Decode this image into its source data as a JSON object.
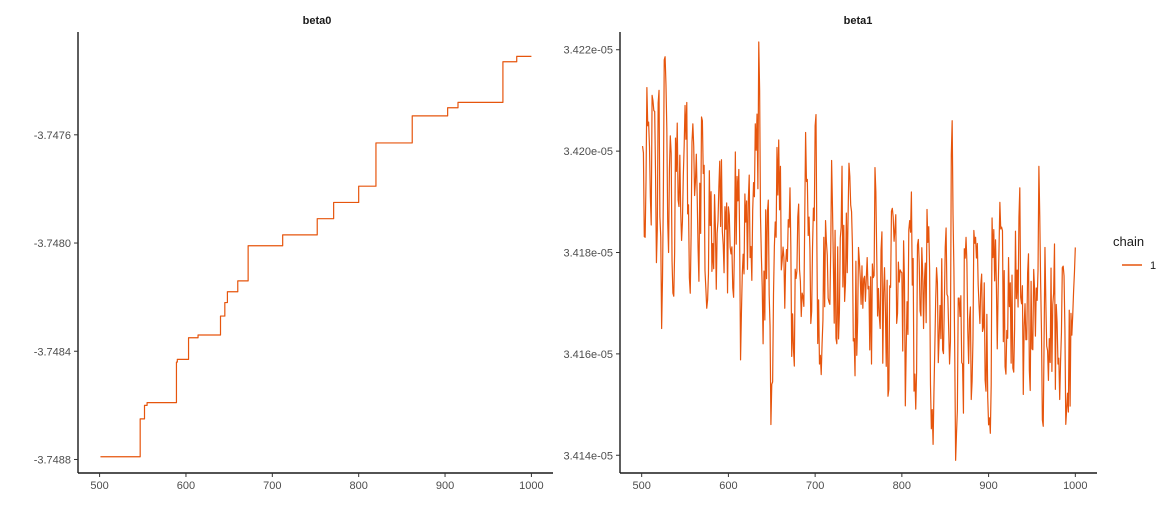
{
  "chart_data": [
    {
      "type": "line",
      "title": "beta0",
      "xlabel": "",
      "ylabel": "",
      "xlim": [
        475,
        1025
      ],
      "ylim": [
        -3.74885,
        -3.74722
      ],
      "x_ticks": [
        500,
        600,
        700,
        800,
        900,
        1000
      ],
      "x_tick_labels": [
        "500",
        "600",
        "700",
        "800",
        "900",
        "1000"
      ],
      "y_ticks": [
        -3.7476,
        -3.748,
        -3.7484,
        -3.7488
      ],
      "y_tick_labels": [
        "-3.7476",
        "-3.7480",
        "-3.7484",
        "-3.7488"
      ],
      "step": true,
      "series": [
        {
          "chain": "1",
          "x": [
            501,
            505,
            510,
            520,
            530,
            540,
            546,
            547,
            552,
            555,
            558,
            560,
            565,
            570,
            575,
            580,
            584,
            587,
            589,
            590,
            591,
            592,
            593,
            597,
            601,
            603,
            605,
            608,
            611,
            614,
            618,
            623,
            628,
            633,
            637,
            640,
            644,
            645,
            648,
            653,
            654,
            659,
            660,
            664,
            670,
            672,
            680,
            690,
            700,
            710,
            712,
            720,
            730,
            740,
            750,
            752,
            760,
            768,
            771,
            780,
            790,
            800,
            808,
            811,
            813,
            818,
            820,
            825,
            835,
            845,
            850,
            855,
            860,
            862,
            870,
            880,
            885,
            887,
            895,
            900,
            903,
            905,
            910,
            915,
            925,
            935,
            945,
            955,
            963,
            966,
            967,
            972,
            974,
            980,
            983,
            990,
            1000
          ],
          "y": [
            -3.74879,
            -3.74879,
            -3.74879,
            -3.74879,
            -3.74879,
            -3.74879,
            -3.74879,
            -3.74865,
            -3.7486,
            -3.74859,
            -3.74859,
            -3.74859,
            -3.74859,
            -3.74859,
            -3.74859,
            -3.74859,
            -3.74859,
            -3.74859,
            -3.74844,
            -3.74843,
            -3.74843,
            -3.74843,
            -3.74843,
            -3.74843,
            -3.74843,
            -3.74835,
            -3.74835,
            -3.74835,
            -3.74835,
            -3.74834,
            -3.74834,
            -3.74834,
            -3.74834,
            -3.74834,
            -3.74834,
            -3.74827,
            -3.74827,
            -3.74822,
            -3.74818,
            -3.74818,
            -3.74818,
            -3.74818,
            -3.74814,
            -3.74814,
            -3.74814,
            -3.74801,
            -3.74801,
            -3.74801,
            -3.74801,
            -3.74801,
            -3.74797,
            -3.74797,
            -3.74797,
            -3.74797,
            -3.74797,
            -3.74791,
            -3.74791,
            -3.74791,
            -3.74785,
            -3.74785,
            -3.74785,
            -3.74779,
            -3.74779,
            -3.74779,
            -3.74779,
            -3.74779,
            -3.74763,
            -3.74763,
            -3.74763,
            -3.74763,
            -3.74763,
            -3.74763,
            -3.74763,
            -3.74753,
            -3.74753,
            -3.74753,
            -3.74753,
            -3.74753,
            -3.74753,
            -3.74753,
            -3.7475,
            -3.7475,
            -3.7475,
            -3.74748,
            -3.74748,
            -3.74748,
            -3.74748,
            -3.74748,
            -3.74748,
            -3.74748,
            -3.74733,
            -3.74733,
            -3.74733,
            -3.74733,
            -3.74731,
            -3.74731,
            -3.74731
          ]
        }
      ]
    },
    {
      "type": "line",
      "title": "beta1",
      "xlabel": "",
      "ylabel": "",
      "xlim": [
        475,
        1025
      ],
      "ylim": [
        3.41365e-05,
        3.42235e-05
      ],
      "x_ticks": [
        500,
        600,
        700,
        800,
        900,
        1000
      ],
      "x_tick_labels": [
        "500",
        "600",
        "700",
        "800",
        "900",
        "1000"
      ],
      "y_ticks": [
        3.422e-05,
        3.42e-05,
        3.418e-05,
        3.416e-05,
        3.414e-05
      ],
      "y_tick_labels": [
        "3.422e-05",
        "3.420e-05",
        "3.418e-05",
        "3.416e-05",
        "3.414e-05"
      ],
      "step": false,
      "noise_amplitude": 1.5e-08,
      "series": [
        {
          "chain": "1",
          "x": [
            501,
            504,
            507,
            510,
            514,
            517,
            520,
            523,
            526,
            530,
            533,
            536,
            540,
            545,
            550,
            555,
            560,
            565,
            570,
            575,
            580,
            585,
            590,
            595,
            600,
            605,
            610,
            615,
            620,
            625,
            630,
            636,
            640,
            645,
            650,
            655,
            660,
            665,
            670,
            675,
            680,
            685,
            690,
            695,
            700,
            705,
            710,
            715,
            720,
            725,
            730,
            735,
            740,
            745,
            750,
            755,
            760,
            765,
            770,
            775,
            780,
            785,
            790,
            795,
            800,
            805,
            810,
            815,
            820,
            825,
            830,
            835,
            840,
            845,
            850,
            855,
            858,
            862,
            865,
            870,
            875,
            880,
            885,
            890,
            895,
            900,
            905,
            910,
            915,
            920,
            925,
            930,
            935,
            940,
            945,
            950,
            955,
            958,
            962,
            965,
            970,
            975,
            980,
            985,
            990,
            995,
            1000
          ],
          "y": [
            3.4201e-05,
            3.4183e-05,
            3.4205e-05,
            3.4191e-05,
            3.4208e-05,
            3.4178e-05,
            3.4212e-05,
            3.4165e-05,
            3.4218e-05,
            3.4186e-05,
            3.4203e-05,
            3.4172e-05,
            3.4196e-05,
            3.4188e-05,
            3.4209e-05,
            3.4175e-05,
            3.4201e-05,
            3.4181e-05,
            3.4206e-05,
            3.4169e-05,
            3.4192e-05,
            3.4185e-05,
            3.4198e-05,
            3.4176e-05,
            3.4189e-05,
            3.4173e-05,
            3.4195e-05,
            3.4168e-05,
            3.4186e-05,
            3.4179e-05,
            3.4191e-05,
            3.4212e-05,
            3.4162e-05,
            3.4188e-05,
            3.4154e-05,
            3.4183e-05,
            3.4197e-05,
            3.4169e-05,
            3.4185e-05,
            3.4161e-05,
            3.4187e-05,
            3.4172e-05,
            3.4194e-05,
            3.4166e-05,
            3.4205e-05,
            3.4158e-05,
            3.4183e-05,
            3.4171e-05,
            3.4189e-05,
            3.4162e-05,
            3.4185e-05,
            3.4174e-05,
            3.4195e-05,
            3.4163e-05,
            3.4181e-05,
            3.4169e-05,
            3.4179e-05,
            3.4158e-05,
            3.4192e-05,
            3.4165e-05,
            3.4177e-05,
            3.4153e-05,
            3.4187e-05,
            3.4168e-05,
            3.4176e-05,
            3.4161e-05,
            3.4184e-05,
            3.4156e-05,
            3.4178e-05,
            3.4165e-05,
            3.4182e-05,
            3.4149e-05,
            3.4177e-05,
            3.4163e-05,
            3.4181e-05,
            3.4158e-05,
            3.4206e-05,
            3.4139e-05,
            3.4171e-05,
            3.4158e-05,
            3.4178e-05,
            3.4151e-05,
            3.4183e-05,
            3.4166e-05,
            3.4174e-05,
            3.4146e-05,
            3.4179e-05,
            3.4161e-05,
            3.4185e-05,
            3.4156e-05,
            3.4174e-05,
            3.4165e-05,
            3.4187e-05,
            3.4152e-05,
            3.4176e-05,
            3.4161e-05,
            3.4173e-05,
            3.4197e-05,
            3.4147e-05,
            3.4181e-05,
            3.4163e-05,
            3.4172e-05,
            3.4158e-05,
            3.4177e-05,
            3.4149e-05,
            3.4168e-05,
            3.4181e-05
          ]
        }
      ]
    }
  ],
  "legend": {
    "title": "chain",
    "entries": [
      {
        "label": "1",
        "color": "#E6550D"
      }
    ]
  },
  "colors": {
    "series": "#E6550D",
    "axis": "#1a1a1a",
    "tick_text": "#4d4d4d",
    "background": "#ffffff"
  }
}
